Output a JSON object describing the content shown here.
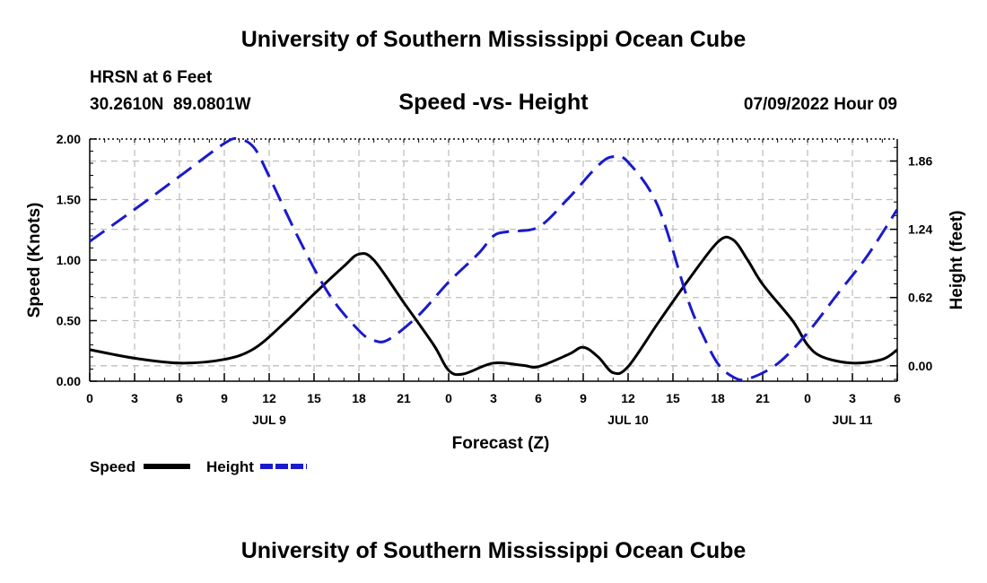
{
  "page": {
    "title_top": "University of Southern Mississippi Ocean Cube",
    "title_bottom": "University of Southern Mississippi Ocean Cube",
    "station_line": "HRSN at 6 Feet",
    "coord_line": "30.2610N  89.0801W",
    "datetime": "07/09/2022 Hour 09"
  },
  "colors": {
    "speed": "#000000",
    "height": "#1a1acc",
    "grid": "#bfbfbf"
  },
  "chart_data": {
    "type": "line",
    "title": "Speed -vs- Height",
    "xlabel": "Forecast (Z)",
    "ylabel": "Speed (Knots)",
    "y2label": "Height (feet)",
    "x_unit": "hours from 07/09 00Z",
    "xlim": [
      0,
      54
    ],
    "ylim": [
      0,
      2.0
    ],
    "y2lim": [
      -0.14,
      2.06
    ],
    "x_ticks": [
      0,
      3,
      6,
      9,
      12,
      15,
      18,
      21,
      24,
      27,
      30,
      33,
      36,
      39,
      42,
      45,
      48,
      51,
      54
    ],
    "x_tick_labels": [
      "0",
      "3",
      "6",
      "9",
      "12",
      "15",
      "18",
      "21",
      "0",
      "3",
      "6",
      "9",
      "12",
      "15",
      "18",
      "21",
      "0",
      "3",
      "6"
    ],
    "day_labels": [
      {
        "x": 12,
        "label": "JUL 9"
      },
      {
        "x": 36,
        "label": "JUL 10"
      },
      {
        "x": 51,
        "label": "JUL 11"
      }
    ],
    "y_ticks": [
      0.0,
      0.5,
      1.0,
      1.5,
      2.0
    ],
    "y_tick_labels": [
      "0.00",
      "0.50",
      "1.00",
      "1.50",
      "2.00"
    ],
    "y2_ticks": [
      0.0,
      0.62,
      1.24,
      1.86
    ],
    "y2_tick_labels": [
      "0.00",
      "0.62",
      "1.24",
      "1.86"
    ],
    "series": [
      {
        "name": "Speed",
        "axis": "left",
        "style": "solid",
        "x": [
          0,
          3,
          6,
          9,
          11,
          13,
          15,
          17,
          18,
          19,
          21,
          23,
          24,
          25,
          27,
          29,
          30,
          32,
          33,
          34,
          35,
          36,
          38,
          40,
          42,
          43,
          44,
          45,
          47,
          48,
          49,
          51,
          53,
          54
        ],
        "values": [
          0.26,
          0.19,
          0.15,
          0.18,
          0.27,
          0.48,
          0.72,
          0.95,
          1.05,
          1.0,
          0.65,
          0.3,
          0.09,
          0.06,
          0.15,
          0.13,
          0.12,
          0.22,
          0.28,
          0.2,
          0.07,
          0.12,
          0.48,
          0.83,
          1.15,
          1.17,
          1.0,
          0.8,
          0.5,
          0.3,
          0.2,
          0.15,
          0.18,
          0.26
        ]
      },
      {
        "name": "Height",
        "axis": "right",
        "style": "dashed",
        "x": [
          0,
          3,
          6,
          9,
          10,
          11,
          12,
          14,
          16,
          18,
          19,
          20,
          22,
          24,
          26,
          27,
          28,
          30,
          32,
          34,
          35,
          36,
          38,
          40,
          41,
          42,
          43,
          44,
          46,
          48,
          50,
          52,
          54
        ],
        "values": [
          1.13,
          1.42,
          1.72,
          2.02,
          2.06,
          1.98,
          1.72,
          1.15,
          0.65,
          0.32,
          0.23,
          0.24,
          0.46,
          0.76,
          1.02,
          1.18,
          1.22,
          1.26,
          1.52,
          1.82,
          1.9,
          1.85,
          1.45,
          0.6,
          0.28,
          0.02,
          -0.1,
          -0.12,
          0.02,
          0.3,
          0.65,
          1.0,
          1.42
        ]
      }
    ],
    "legend": [
      {
        "label": "Speed",
        "style": "solid"
      },
      {
        "label": "Height",
        "style": "dashed"
      }
    ]
  }
}
